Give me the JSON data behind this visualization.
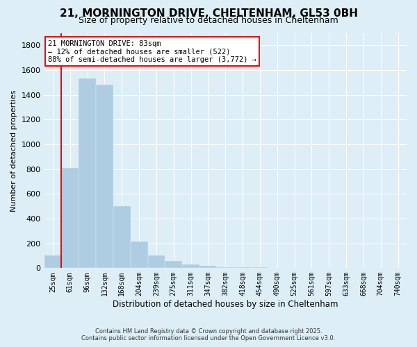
{
  "title": "21, MORNINGTON DRIVE, CHELTENHAM, GL53 0BH",
  "subtitle": "Size of property relative to detached houses in Cheltenham",
  "xlabel": "Distribution of detached houses by size in Cheltenham",
  "ylabel": "Number of detached properties",
  "footnote1": "Contains HM Land Registry data © Crown copyright and database right 2025.",
  "footnote2": "Contains public sector information licensed under the Open Government Licence v3.0.",
  "categories": [
    "25sqm",
    "61sqm",
    "96sqm",
    "132sqm",
    "168sqm",
    "204sqm",
    "239sqm",
    "275sqm",
    "311sqm",
    "347sqm",
    "382sqm",
    "418sqm",
    "454sqm",
    "490sqm",
    "525sqm",
    "561sqm",
    "597sqm",
    "633sqm",
    "668sqm",
    "704sqm",
    "740sqm"
  ],
  "values": [
    105,
    810,
    1530,
    1480,
    500,
    215,
    105,
    58,
    30,
    18,
    10,
    8,
    5,
    4,
    3,
    2,
    2,
    1,
    1,
    1,
    1
  ],
  "bar_color": "#aecde3",
  "vline_x": 0.5,
  "vline_color": "red",
  "annotation_title": "21 MORNINGTON DRIVE: 83sqm",
  "annotation_line1": "← 12% of detached houses are smaller (522)",
  "annotation_line2": "88% of semi-detached houses are larger (3,772) →",
  "annotation_box_color": "red",
  "ylim": [
    0,
    1900
  ],
  "yticks": [
    0,
    200,
    400,
    600,
    800,
    1000,
    1200,
    1400,
    1600,
    1800
  ],
  "bg_color": "#ddeef6",
  "plot_bg_color": "#ddeef6",
  "grid_color": "#ffffff",
  "title_fontsize": 11,
  "subtitle_fontsize": 9
}
